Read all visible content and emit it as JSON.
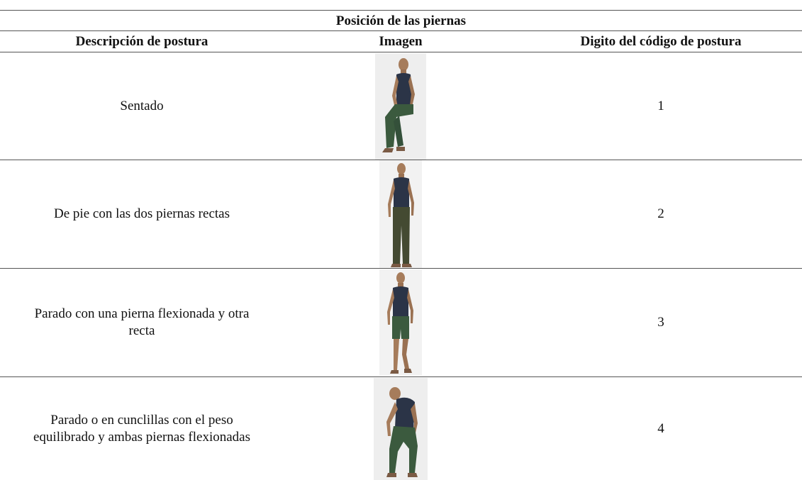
{
  "table": {
    "title": "Posición de las piernas",
    "header": [
      "Descripción de postura",
      "Imagen",
      "Digito del código de postura"
    ],
    "rows": [
      [
        "Sentado",
        1
      ],
      [
        "De pie con las dos piernas rectas",
        2
      ],
      [
        "Parado con una pierna flexionada y otra recta",
        3
      ],
      [
        "Parado o en cunclillas con el peso equilibrado y ambas piernas flexionadas",
        4
      ]
    ]
  }
}
